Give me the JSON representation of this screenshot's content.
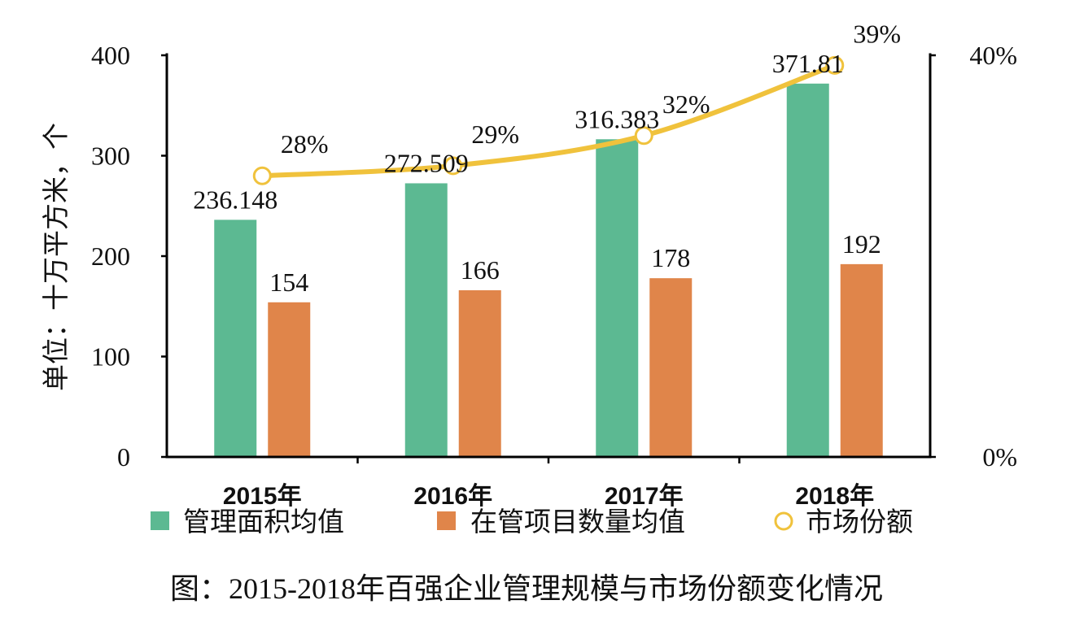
{
  "chart_data": {
    "type": "bar",
    "categories": [
      "2015年",
      "2016年",
      "2017年",
      "2018年"
    ],
    "series": [
      {
        "name": "管理面积均值",
        "type": "bar",
        "axis": "left",
        "color": "#5CB992",
        "values": [
          236.148,
          272.509,
          316.383,
          371.81
        ]
      },
      {
        "name": "在管项目数量均值",
        "type": "bar",
        "axis": "left",
        "color": "#E0854A",
        "values": [
          154,
          166,
          178,
          192
        ]
      },
      {
        "name": "市场份额",
        "type": "line",
        "axis": "right",
        "color": "#F0C23C",
        "values": [
          28,
          29,
          32,
          39
        ],
        "labels": [
          "28%",
          "29%",
          "32%",
          "39%"
        ]
      }
    ],
    "ylabel": "单位：十万平方米，个",
    "ylim": [
      0,
      400
    ],
    "yticks": [
      0,
      100,
      200,
      300,
      400
    ],
    "y2lim": [
      0,
      40
    ],
    "y2ticks": [
      {
        "value": 0,
        "label": "0%"
      },
      {
        "value": 40,
        "label": "40%"
      }
    ],
    "grid": false,
    "legend": "bottom",
    "caption": "图：2015-2018年百强企业管理规模与市场份额变化情况"
  }
}
